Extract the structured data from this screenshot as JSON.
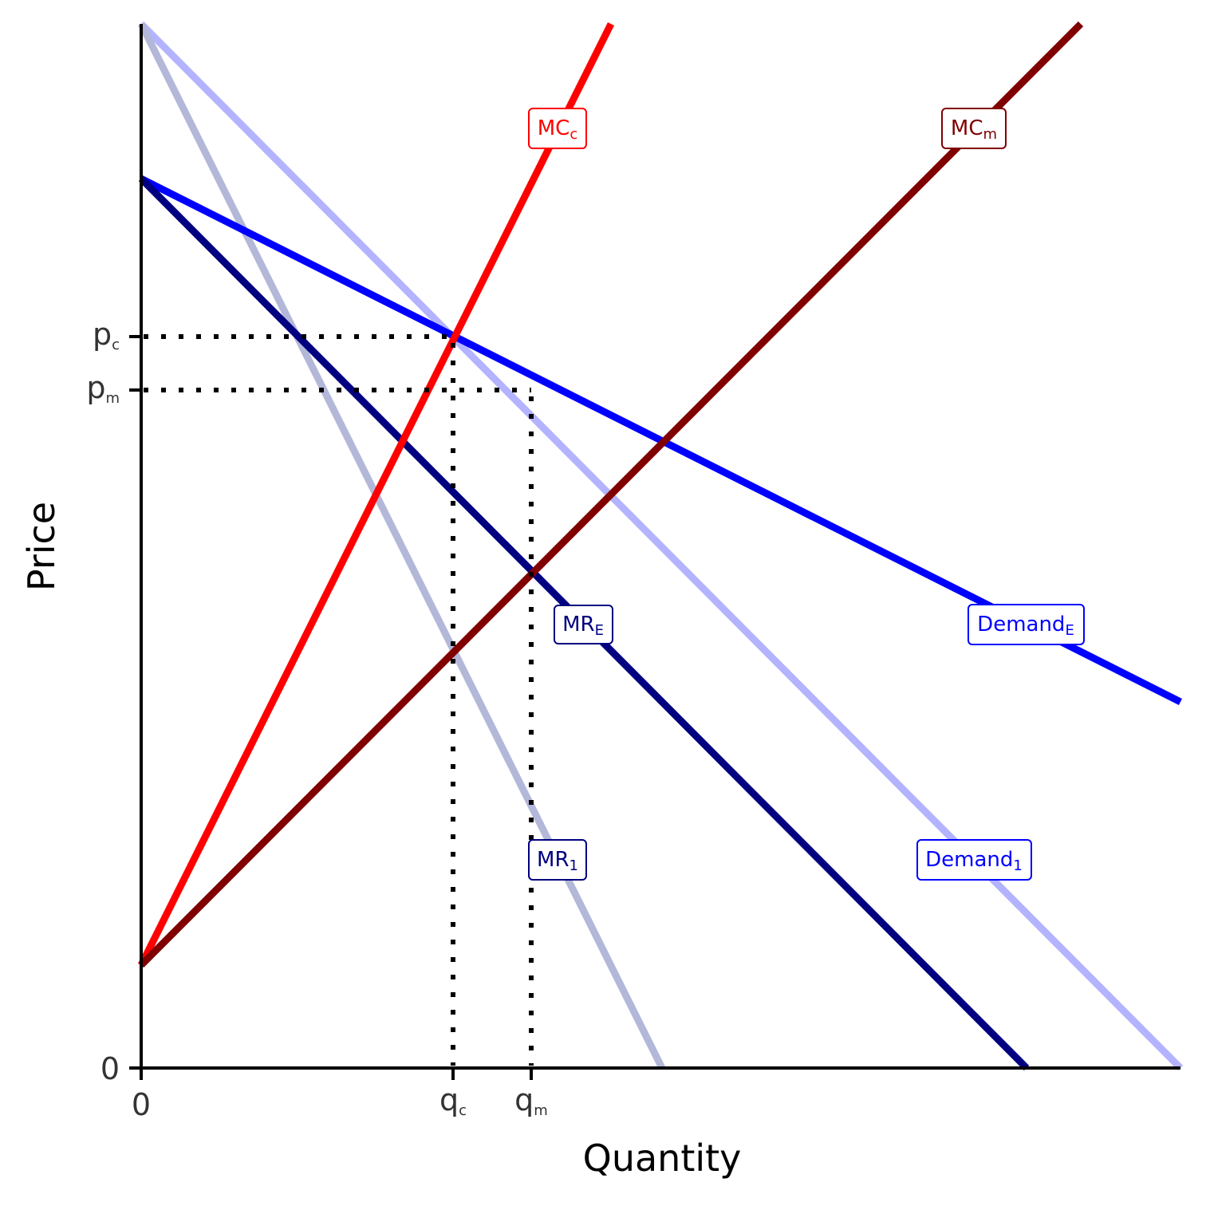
{
  "axes": {
    "x_title": "Quantity",
    "y_title": "Price",
    "y_ticks": [
      {
        "main": "p",
        "sub": "c"
      },
      {
        "main": "p",
        "sub": "m"
      },
      {
        "main": "0"
      }
    ],
    "x_ticks": [
      {
        "main": "0"
      },
      {
        "main": "q",
        "sub": "c"
      },
      {
        "main": "q",
        "sub": "m"
      }
    ]
  },
  "curves": [
    {
      "main": "MC",
      "sub": "c"
    },
    {
      "main": "MC",
      "sub": "m"
    },
    {
      "main": "MR",
      "sub": "E"
    },
    {
      "main": "Demand",
      "sub": "E"
    },
    {
      "main": "MR",
      "sub": "1"
    },
    {
      "main": "Demand",
      "sub": "1"
    }
  ]
}
